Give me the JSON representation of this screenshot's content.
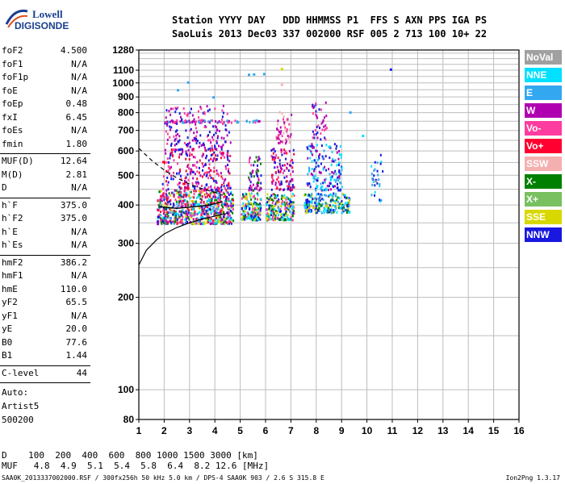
{
  "logo": {
    "line1": "Lowell",
    "line2": "DIGISONDE"
  },
  "header": {
    "row1": "Station YYYY DAY   DDD HHMMSS P1  FFS S AXN PPS IGA PS",
    "row2": "SaoLuis 2013 Dec03 337 002000 RSF 005 2 713 100 10+ 22"
  },
  "params_group1": [
    {
      "name": "foF2",
      "value": "4.500"
    },
    {
      "name": "foF1",
      "value": "N/A"
    },
    {
      "name": "foF1p",
      "value": "N/A"
    },
    {
      "name": "foE",
      "value": "N/A"
    },
    {
      "name": "foEp",
      "value": "0.48"
    },
    {
      "name": "fxI",
      "value": "6.45"
    },
    {
      "name": "foEs",
      "value": "N/A"
    },
    {
      "name": "fmin",
      "value": "1.80"
    }
  ],
  "params_group2": [
    {
      "name": "MUF(D)",
      "value": "12.64"
    },
    {
      "name": "M(D)",
      "value": "2.81"
    },
    {
      "name": "D",
      "value": "N/A"
    }
  ],
  "params_group3": [
    {
      "name": "h`F",
      "value": "375.0"
    },
    {
      "name": "h`F2",
      "value": "375.0"
    },
    {
      "name": "h`E",
      "value": "N/A"
    },
    {
      "name": "h`Es",
      "value": "N/A"
    }
  ],
  "params_group4": [
    {
      "name": "hmF2",
      "value": "386.2"
    },
    {
      "name": "hmF1",
      "value": "N/A"
    },
    {
      "name": "hmE",
      "value": "110.0"
    },
    {
      "name": "yF2",
      "value": "65.5"
    },
    {
      "name": "yF1",
      "value": "N/A"
    },
    {
      "name": "yE",
      "value": "20.0"
    },
    {
      "name": "B0",
      "value": "77.6"
    },
    {
      "name": "B1",
      "value": "1.44"
    }
  ],
  "params_group5": [
    {
      "name": "C-level",
      "value": "44"
    }
  ],
  "auto": {
    "line1": "Auto:",
    "line2": "Artist5",
    "line3": "500200"
  },
  "bottom": {
    "d_row": "D    100  200  400  600  800 1000 1500 3000 [km]",
    "muf_row": "MUF   4.8  4.9  5.1  5.4  5.8  6.4  8.2 12.6 [MHz]"
  },
  "footer": {
    "left": "SAA0K_2013337002000.RSF / 300fx256h 50 kHz 5.0 km / DPS-4 SAA0K 903 / 2.6 S 315.8 E",
    "right": "Ion2Png 1.3.17"
  },
  "legend": [
    {
      "label": "NoVal",
      "color": "#a0a0a0"
    },
    {
      "label": "NNE",
      "color": "#00e0ff"
    },
    {
      "label": "E",
      "color": "#33a8f0"
    },
    {
      "label": "W",
      "color": "#b000b0"
    },
    {
      "label": "Vo-",
      "color": "#ff3ca0"
    },
    {
      "label": "Vo+",
      "color": "#ff0030"
    },
    {
      "label": "SSW",
      "color": "#f4b0b0"
    },
    {
      "label": "X-",
      "color": "#008000"
    },
    {
      "label": "X+",
      "color": "#78c060"
    },
    {
      "label": "SSE",
      "color": "#d8d800"
    },
    {
      "label": "NNW",
      "color": "#1818e0"
    }
  ],
  "chart_data": {
    "type": "scatter",
    "xlim": [
      1,
      16
    ],
    "ylim": [
      80,
      1280
    ],
    "y_scale": "log",
    "x_ticks": [
      "1",
      "2",
      "3",
      "4",
      "5",
      "6",
      "7",
      "8",
      "9",
      "10",
      "11",
      "12",
      "13",
      "14",
      "15",
      "16"
    ],
    "y_ticks": [
      80,
      100,
      200,
      300,
      400,
      500,
      600,
      700,
      800,
      900,
      1000,
      1100,
      1280
    ],
    "y_tick_labels": [
      "80",
      "100",
      "200",
      "300",
      "400",
      "500",
      "600",
      "700",
      "800",
      "900",
      "1000",
      "1100",
      "1280"
    ],
    "grid": true,
    "clusters": [
      {
        "x": [
          1.7,
          4.7
        ],
        "y": [
          350,
          450
        ],
        "n": 700,
        "colors": [
          "#ff3ca0",
          "#b000b0",
          "#ff0030",
          "#1818e0",
          "#00e0ff",
          "#d8d800",
          "#008000",
          "#33a8f0"
        ]
      },
      {
        "x": [
          1.9,
          4.6
        ],
        "y": [
          450,
          620
        ],
        "n": 260,
        "colors": [
          "#b000b0",
          "#ff3ca0",
          "#1818e0",
          "#ff0030"
        ]
      },
      {
        "x": [
          2.0,
          4.6
        ],
        "y": [
          620,
          850
        ],
        "n": 150,
        "colors": [
          "#b000b0",
          "#ff3ca0",
          "#1818e0"
        ]
      },
      {
        "x": [
          5.0,
          5.8
        ],
        "y": [
          360,
          440
        ],
        "n": 160,
        "colors": [
          "#d8d800",
          "#008000",
          "#1818e0",
          "#ff3ca0",
          "#00e0ff"
        ]
      },
      {
        "x": [
          5.3,
          5.8
        ],
        "y": [
          450,
          580
        ],
        "n": 60,
        "colors": [
          "#b000b0",
          "#ff3ca0",
          "#1818e0",
          "#008000"
        ]
      },
      {
        "x": [
          6.0,
          7.1
        ],
        "y": [
          360,
          440
        ],
        "n": 200,
        "colors": [
          "#d8d800",
          "#00e0ff",
          "#008000",
          "#1818e0",
          "#ff3ca0"
        ]
      },
      {
        "x": [
          6.2,
          7.1
        ],
        "y": [
          450,
          620
        ],
        "n": 110,
        "colors": [
          "#ff3ca0",
          "#b000b0",
          "#1818e0",
          "#ff0030"
        ]
      },
      {
        "x": [
          6.4,
          7.0
        ],
        "y": [
          640,
          820
        ],
        "n": 50,
        "colors": [
          "#f4b0b0",
          "#ff3ca0",
          "#b000b0"
        ]
      },
      {
        "x": [
          7.5,
          9.3
        ],
        "y": [
          380,
          440
        ],
        "n": 230,
        "colors": [
          "#1818e0",
          "#00e0ff",
          "#008000",
          "#d8d800",
          "#33a8f0"
        ]
      },
      {
        "x": [
          7.6,
          9.0
        ],
        "y": [
          450,
          640
        ],
        "n": 170,
        "colors": [
          "#1818e0",
          "#33a8f0",
          "#b000b0",
          "#00e0ff"
        ]
      },
      {
        "x": [
          7.8,
          8.4
        ],
        "y": [
          660,
          880
        ],
        "n": 40,
        "colors": [
          "#1818e0",
          "#b000b0",
          "#ff3ca0"
        ]
      },
      {
        "x": [
          10.1,
          10.6
        ],
        "y": [
          410,
          590
        ],
        "n": 30,
        "colors": [
          "#33a8f0",
          "#00e0ff",
          "#1818e0"
        ]
      }
    ],
    "band_750": {
      "x": [
        2.0,
        5.8
      ],
      "y": 755,
      "n": 80,
      "colors": [
        "#b000b0",
        "#ff3ca0",
        "#33a8f0"
      ]
    },
    "sparse_points": [
      {
        "x": 2.5,
        "y": 955,
        "c": "#33a8f0"
      },
      {
        "x": 2.9,
        "y": 1012,
        "c": "#33a8f0"
      },
      {
        "x": 3.9,
        "y": 905,
        "c": "#33a8f0"
      },
      {
        "x": 5.3,
        "y": 1072,
        "c": "#33a8f0"
      },
      {
        "x": 5.5,
        "y": 1075,
        "c": "#33a8f0"
      },
      {
        "x": 5.9,
        "y": 1078,
        "c": "#33a8f0"
      },
      {
        "x": 6.6,
        "y": 1120,
        "c": "#d8d800"
      },
      {
        "x": 6.6,
        "y": 995,
        "c": "#f4b0b0"
      },
      {
        "x": 9.3,
        "y": 808,
        "c": "#33a8f0"
      },
      {
        "x": 9.8,
        "y": 678,
        "c": "#00e0ff"
      },
      {
        "x": 10.9,
        "y": 1115,
        "c": "#1818e0"
      },
      {
        "x": 10.3,
        "y": 482,
        "c": "#a0a0a0"
      }
    ],
    "profile_solid": [
      [
        1.0,
        255
      ],
      [
        1.3,
        285
      ],
      [
        1.7,
        308
      ],
      [
        2.0,
        322
      ],
      [
        2.5,
        338
      ],
      [
        3.0,
        350
      ],
      [
        3.5,
        360
      ],
      [
        4.0,
        368
      ],
      [
        4.5,
        376
      ]
    ],
    "profile_dashed": [
      [
        1.0,
        612
      ],
      [
        1.5,
        560
      ],
      [
        2.0,
        520
      ],
      [
        2.5,
        490
      ],
      [
        3.0,
        468
      ],
      [
        3.5,
        452
      ],
      [
        4.0,
        440
      ],
      [
        4.3,
        430
      ]
    ],
    "trace_line": [
      [
        1.8,
        395
      ],
      [
        2.5,
        390
      ],
      [
        3.2,
        395
      ],
      [
        3.8,
        400
      ],
      [
        4.3,
        410
      ]
    ]
  }
}
